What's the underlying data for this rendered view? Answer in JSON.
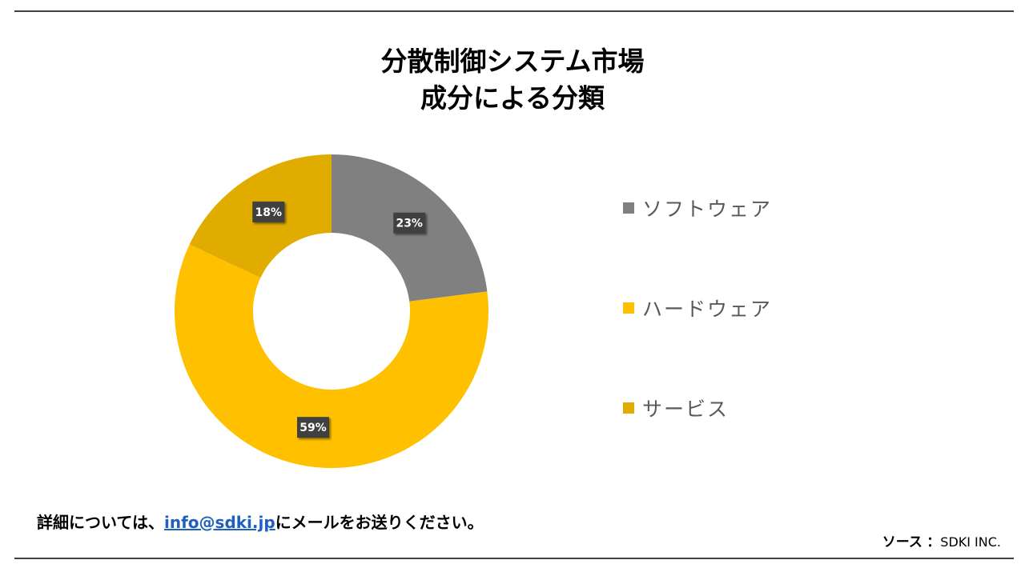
{
  "chart_data": {
    "type": "pie",
    "title": "分散制御システム市場",
    "subtitle": "成分による分類",
    "categories": [
      "ソフトウェア",
      "ハードウェア",
      "サービス"
    ],
    "values": [
      23,
      59,
      18
    ],
    "data_labels": [
      "23%",
      "59%",
      "18%"
    ],
    "colors": [
      "#808080",
      "#FFC000",
      "#E0AC00"
    ],
    "donut": true,
    "legend_position": "right"
  },
  "footer": {
    "contact_prefix": "詳細については、",
    "contact_email": "info@sdki.jp",
    "contact_suffix": "にメールをお送りください。",
    "source_label": "ソース",
    "source_separator": "：",
    "source_value": "SDKI INC."
  }
}
